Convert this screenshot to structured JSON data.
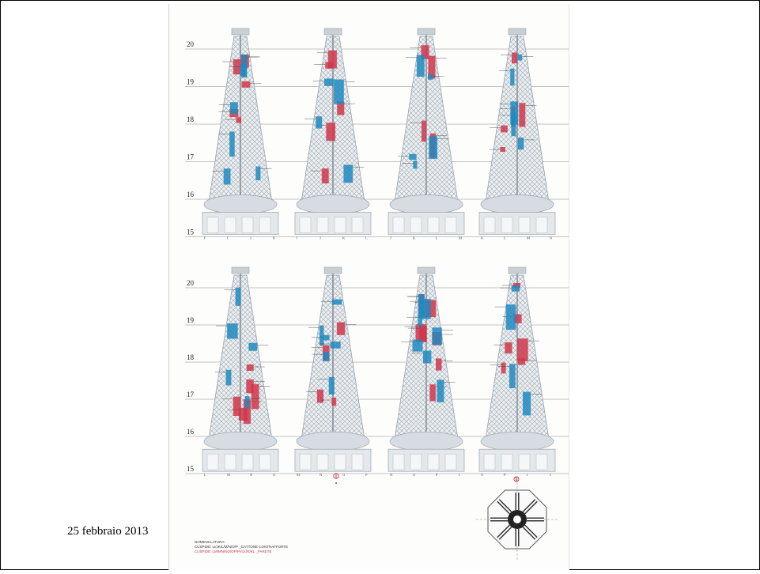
{
  "slide": {
    "date": "25 febbraio 2013"
  },
  "panel_rows": [
    {
      "levels": [
        "20",
        "19",
        "18",
        "17",
        "16",
        "15"
      ]
    },
    {
      "levels": [
        "20",
        "19",
        "18",
        "17",
        "16",
        "15"
      ]
    }
  ],
  "spires_top": [
    {
      "letters": [
        "F",
        "I",
        "J",
        "K"
      ]
    },
    {
      "letters": [
        "I",
        "J",
        "K",
        "L"
      ]
    },
    {
      "letters": [
        "J",
        "K",
        "L",
        "M"
      ]
    },
    {
      "letters": [
        "K",
        "L",
        "M",
        "N"
      ]
    }
  ],
  "spires_bottom": [
    {
      "letters": [
        "L",
        "M",
        "N",
        "O"
      ]
    },
    {
      "letters": [
        "M",
        "N",
        "O",
        "P"
      ]
    },
    {
      "letters": [
        "N",
        "O",
        "P",
        "I"
      ]
    },
    {
      "letters": [
        "O",
        "P",
        "I",
        "J"
      ]
    }
  ],
  "legend": {
    "heading": "NOMENCLATURA:",
    "line1": "CUSPIDE: LI/JK/L/M/N/O/P _GATTONE CONTRAFFORTE",
    "line2": "CUSPIDE: LM/MN/NO/OP/PI/IJ/JK/KL _PARETE"
  },
  "colors": {
    "red": "#d0364a",
    "blue": "#1f8ac0",
    "stone": "#9aa4ad",
    "line": "#8a8a8a"
  },
  "icons": [
    "compass-north-icon",
    "floor-plan-icon"
  ]
}
